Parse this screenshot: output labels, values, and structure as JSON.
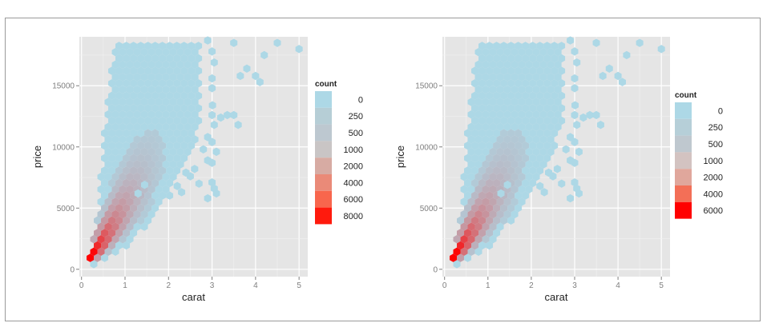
{
  "chart_data": [
    {
      "type": "hexbin",
      "xlabel": "carat",
      "ylabel": "price",
      "xlim": [
        -0.05,
        5.2
      ],
      "ylim": [
        -600,
        19000
      ],
      "x_ticks": [
        0,
        1,
        2,
        3,
        4,
        5
      ],
      "y_ticks": [
        0,
        5000,
        10000,
        15000
      ],
      "x_tick_labels": [
        "0",
        "1",
        "2",
        "3",
        "4",
        "5"
      ],
      "y_tick_labels": [
        "0",
        "5000",
        "10000",
        "15000"
      ],
      "grid": true,
      "legend": {
        "title": "count",
        "position": "right",
        "entries": [
          {
            "label": "0",
            "color": "#add8e6"
          },
          {
            "label": "250",
            "color": "#b6ced6"
          },
          {
            "label": "500",
            "color": "#bdc8d0"
          },
          {
            "label": "1000",
            "color": "#c9c5c5"
          },
          {
            "label": "2000",
            "color": "#d7aba3"
          },
          {
            "label": "4000",
            "color": "#ea8a78"
          },
          {
            "label": "6000",
            "color": "#f8664d"
          },
          {
            "label": "8000",
            "color": "#ff1a0d"
          }
        ]
      },
      "color_low": "#add8e6",
      "color_high": "#ff0000"
    },
    {
      "type": "hexbin",
      "xlabel": "carat",
      "ylabel": "price",
      "xlim": [
        -0.05,
        5.2
      ],
      "ylim": [
        -600,
        19000
      ],
      "x_ticks": [
        0,
        1,
        2,
        3,
        4,
        5
      ],
      "y_ticks": [
        0,
        5000,
        10000,
        15000
      ],
      "x_tick_labels": [
        "0",
        "1",
        "2",
        "3",
        "4",
        "5"
      ],
      "y_tick_labels": [
        "0",
        "5000",
        "10000",
        "15000"
      ],
      "grid": true,
      "legend": {
        "title": "count",
        "position": "right",
        "entries": [
          {
            "label": "0",
            "color": "#add8e6"
          },
          {
            "label": "250",
            "color": "#b6cfd8"
          },
          {
            "label": "500",
            "color": "#bfc8cf"
          },
          {
            "label": "1000",
            "color": "#d3c3c1"
          },
          {
            "label": "2000",
            "color": "#e0a79c"
          },
          {
            "label": "4000",
            "color": "#f36f57"
          },
          {
            "label": "6000",
            "color": "#ff0000"
          }
        ]
      },
      "color_low": "#add8e6",
      "color_high": "#ff0000"
    }
  ]
}
